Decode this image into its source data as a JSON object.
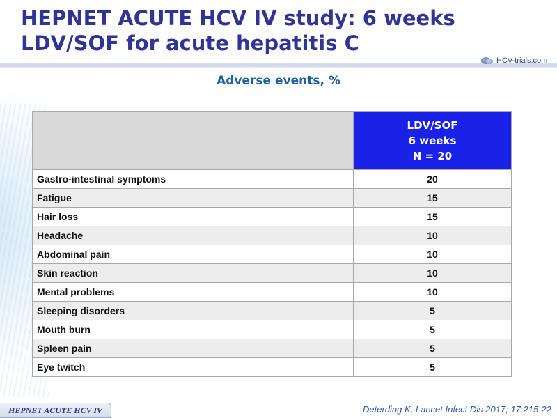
{
  "slide": {
    "title_line1": "HEPNET ACUTE HCV IV study: 6 weeks",
    "title_line2": "LDV/SOF for acute hepatitis C",
    "logo_text": "HCV-trials.com",
    "subtitle": "Adverse events, %",
    "footer_badge": "HEPNET ACUTE HCV IV",
    "citation": "Deterding K, Lancet Infect Dis 2017; 17:215-22"
  },
  "table": {
    "arm_header": [
      "LDV/SOF",
      "6 weeks",
      "N = 20"
    ],
    "rows": [
      {
        "label": "Gastro-intestinal symptoms",
        "value": "20"
      },
      {
        "label": "Fatigue",
        "value": "15"
      },
      {
        "label": "Hair loss",
        "value": "15"
      },
      {
        "label": "Headache",
        "value": "10"
      },
      {
        "label": "Abdominal pain",
        "value": "10"
      },
      {
        "label": "Skin reaction",
        "value": "10"
      },
      {
        "label": "Mental problems",
        "value": "10"
      },
      {
        "label": "Sleeping disorders",
        "value": "5"
      },
      {
        "label": "Mouth burn",
        "value": "5"
      },
      {
        "label": "Spleen pain",
        "value": "5"
      },
      {
        "label": "Eye twitch",
        "value": "5"
      }
    ]
  },
  "colors": {
    "title": "#2e3596",
    "subtitle": "#1f5fa3",
    "arm_header_bg": "#1b22e8"
  }
}
